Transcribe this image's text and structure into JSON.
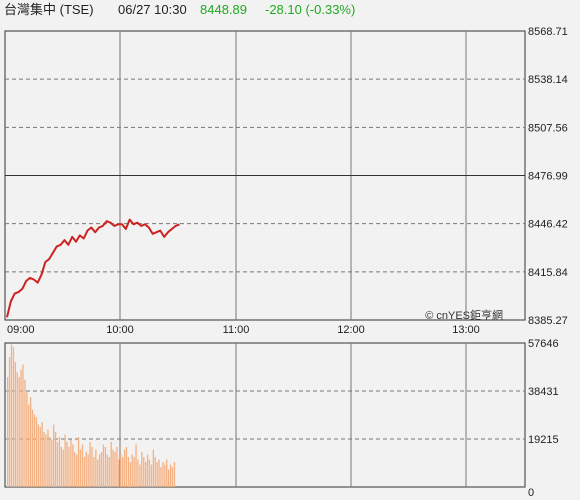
{
  "header": {
    "name": "台灣集中 (TSE)",
    "datetime": "06/27 10:30",
    "price": "8448.89",
    "change": "-28.10 (-0.33%)"
  },
  "colors": {
    "line": "#cc2222",
    "volume": "#f4b183",
    "up": "#1faa1f",
    "grid_dash": "#777777",
    "frame": "#333333"
  },
  "watermark": "© cnYES鉅亨網",
  "chart_data": [
    {
      "type": "line",
      "name": "price",
      "ylim": [
        8385.27,
        8568.71
      ],
      "previous_close": 8476.99,
      "yticks": [
        "8568.71",
        "8538.14",
        "8507.56",
        "8476.99",
        "8446.42",
        "8415.84",
        "8385.27"
      ],
      "xticks": [
        "09:00",
        "10:00",
        "11:00",
        "12:00",
        "13:00"
      ],
      "x_minutes_range": [
        0,
        270
      ],
      "x": [
        0,
        2,
        4,
        6,
        8,
        10,
        12,
        14,
        16,
        18,
        20,
        22,
        24,
        26,
        28,
        30,
        32,
        34,
        36,
        38,
        40,
        42,
        44,
        46,
        48,
        50,
        52,
        54,
        56,
        58,
        60,
        62,
        64,
        66,
        68,
        70,
        72,
        74,
        76,
        78,
        80,
        82,
        84,
        86,
        88,
        90
      ],
      "values": [
        8387,
        8397,
        8402,
        8403,
        8405,
        8410,
        8412,
        8411,
        8409,
        8414,
        8422,
        8424,
        8428,
        8432,
        8433,
        8436,
        8433,
        8438,
        8435,
        8439,
        8437,
        8442,
        8444,
        8441,
        8444,
        8445,
        8448,
        8447,
        8445,
        8446,
        8446,
        8443,
        8449,
        8446,
        8447,
        8445,
        8446,
        8444,
        8440,
        8441,
        8442,
        8438,
        8441,
        8443,
        8445,
        8446
      ]
    },
    {
      "type": "bar",
      "name": "volume",
      "ylim": [
        0,
        57646
      ],
      "yticks": [
        "57646",
        "38431",
        "19215",
        "0"
      ],
      "values": [
        44000,
        52000,
        57000,
        56000,
        50000,
        46000,
        44000,
        47000,
        49000,
        43000,
        38000,
        33000,
        36000,
        31000,
        29000,
        28000,
        25000,
        24000,
        26000,
        22000,
        21000,
        23000,
        20000,
        19000,
        25000,
        22000,
        18000,
        20000,
        16000,
        15000,
        21000,
        18000,
        16000,
        19000,
        17000,
        14000,
        13000,
        20000,
        15000,
        17000,
        12000,
        14000,
        13000,
        18000,
        16000,
        12000,
        15000,
        11000,
        13000,
        14000,
        17000,
        16000,
        13000,
        12000,
        18000,
        15000,
        14000,
        16000,
        11000,
        13000,
        12000,
        15000,
        16000,
        12000,
        10000,
        13000,
        12000,
        17000,
        11000,
        9000,
        14000,
        12000,
        10000,
        13000,
        11000,
        9000,
        15000,
        12000,
        10000,
        11000,
        8000,
        10000,
        9000,
        11000,
        7000,
        9000,
        8000,
        10000
      ]
    }
  ]
}
